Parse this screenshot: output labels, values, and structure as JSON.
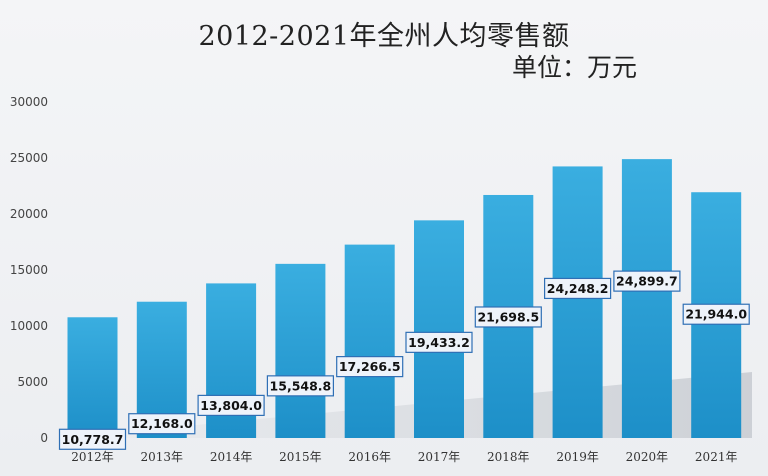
{
  "chart_data": {
    "type": "bar",
    "title": "2012-2021年全州人均零售额",
    "subtitle": "单位：万元",
    "categories": [
      "2012年",
      "2013年",
      "2014年",
      "2015年",
      "2016年",
      "2017年",
      "2018年",
      "2019年",
      "2020年",
      "2021年"
    ],
    "values": [
      10778.7,
      12168.0,
      13804.0,
      15548.8,
      17266.5,
      19433.2,
      21698.5,
      24248.2,
      24899.7,
      21944.0
    ],
    "data_labels": [
      "10,778.7",
      "12,168.0",
      "13,804.0",
      "15,548.8",
      "17,266.5",
      "19,433.2",
      "21,698.5",
      "24,248.2",
      "24,899.7",
      "21,944.0"
    ],
    "yticks": [
      0,
      5000,
      10000,
      15000,
      20000,
      25000,
      30000
    ],
    "ylim": [
      0,
      30000
    ],
    "xlabel": "",
    "ylabel": "",
    "grid": false,
    "bar_color": "#2a9fd6",
    "label_box_fill": "#eef3fa",
    "label_box_border": "#2f6fb5"
  }
}
